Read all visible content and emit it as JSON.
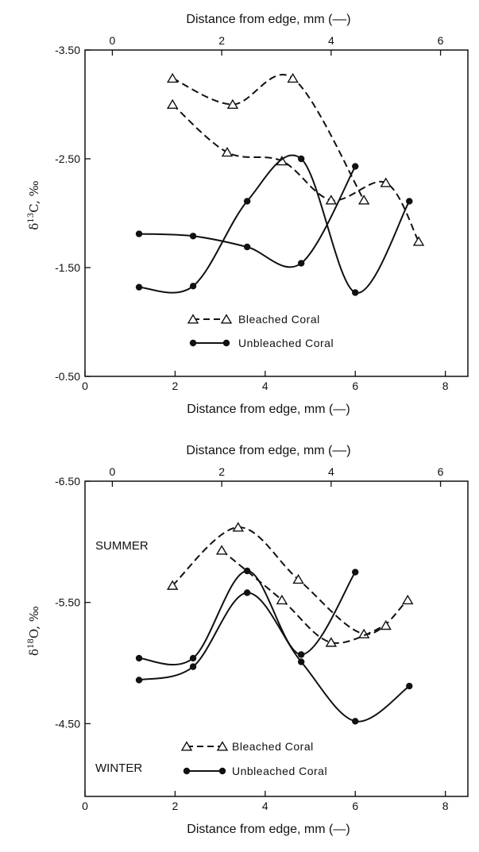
{
  "chart_data": [
    {
      "type": "line",
      "xlabel": "Distance from edge, mm (—)",
      "x2label": "Distance from edge, mm (––)",
      "ylabel_parts": [
        "δ",
        "13",
        "C, ‰"
      ],
      "xlim": [
        0,
        8.5
      ],
      "x2lim": [
        -0.5,
        6.5
      ],
      "ylim": [
        -0.5,
        -3.5
      ],
      "x_ticks": [
        0,
        2,
        4,
        6,
        8
      ],
      "x_tick_labels": [
        "0",
        "2",
        "4",
        "6",
        "8"
      ],
      "x2_ticks": [
        0,
        2,
        4,
        6
      ],
      "x2_tick_labels": [
        "0",
        "2",
        "4",
        "6"
      ],
      "y_ticks": [
        -3.5,
        -2.5,
        -1.5,
        -0.5
      ],
      "y_tick_labels": [
        "-3.50",
        "-2.50",
        "-1.50",
        "-0.50"
      ],
      "legend_placement": "bottom-center",
      "legend": {
        "bleached": "Bleached Coral",
        "unbleached": "Unbleached Coral"
      },
      "series": [
        {
          "name": "Bleached Coral",
          "axis": "top",
          "style": "dashed",
          "marker": "open-triangle",
          "x": [
            1.1,
            2.2,
            3.3,
            4.6
          ],
          "y": [
            -3.24,
            -3.0,
            -3.24,
            -2.12
          ]
        },
        {
          "name": "Bleached Coral",
          "axis": "top",
          "style": "dashed",
          "marker": "open-triangle",
          "x": [
            1.1,
            2.1,
            3.1,
            4.0,
            5.0,
            5.6
          ],
          "y": [
            -3.0,
            -2.56,
            -2.48,
            -2.12,
            -2.28,
            -1.74
          ]
        },
        {
          "name": "Unbleached Coral",
          "axis": "bottom",
          "style": "solid",
          "marker": "filled-circle",
          "x": [
            1.2,
            2.4,
            3.6,
            4.8,
            6.0,
            7.2
          ],
          "y": [
            -1.32,
            -1.33,
            -2.11,
            -2.5,
            -1.27,
            -2.11
          ]
        },
        {
          "name": "Unbleached Coral",
          "axis": "bottom",
          "style": "solid",
          "marker": "filled-circle",
          "x": [
            1.2,
            2.4,
            3.6,
            4.8,
            6.0
          ],
          "y": [
            -1.81,
            -1.79,
            -1.69,
            -1.54,
            -2.43
          ]
        }
      ]
    },
    {
      "type": "line",
      "xlabel": "Distance from edge, mm (—)",
      "x2label": "Distance from edge, mm (––)",
      "ylabel_parts": [
        "δ",
        "18",
        "O, ‰"
      ],
      "xlim": [
        0,
        8.5
      ],
      "x2lim": [
        -0.5,
        6.5
      ],
      "ylim": [
        -3.9,
        -6.5
      ],
      "x_ticks": [
        0,
        2,
        4,
        6,
        8
      ],
      "x_tick_labels": [
        "0",
        "2",
        "4",
        "6",
        "8"
      ],
      "x2_ticks": [
        0,
        2,
        4,
        6
      ],
      "x2_tick_labels": [
        "0",
        "2",
        "4",
        "6"
      ],
      "y_ticks": [
        -6.5,
        -5.5,
        -4.5
      ],
      "y_tick_labels": [
        "-6.50",
        "-5.50",
        "-4.50"
      ],
      "legend_placement": "bottom-center",
      "legend": {
        "bleached": "Bleached Coral",
        "unbleached": "Unbleached Coral"
      },
      "annotations": {
        "summer": "SUMMER",
        "winter": "WINTER"
      },
      "series": [
        {
          "name": "Bleached Coral",
          "axis": "top",
          "style": "dashed",
          "marker": "open-triangle",
          "x": [
            1.1,
            2.3,
            3.4,
            4.6,
            5.4
          ],
          "y": [
            -5.64,
            -6.12,
            -5.69,
            -5.24,
            -5.52
          ]
        },
        {
          "name": "Bleached Coral",
          "axis": "top",
          "style": "dashed",
          "marker": "open-triangle",
          "x": [
            2.0,
            3.1,
            4.0,
            5.0
          ],
          "y": [
            -5.93,
            -5.52,
            -5.17,
            -5.31
          ]
        },
        {
          "name": "Unbleached Coral",
          "axis": "bottom",
          "style": "solid",
          "marker": "filled-circle",
          "x": [
            1.2,
            2.4,
            3.6,
            4.8,
            6.0
          ],
          "y": [
            -5.04,
            -5.04,
            -5.76,
            -5.07,
            -5.75
          ]
        },
        {
          "name": "Unbleached Coral",
          "axis": "bottom",
          "style": "solid",
          "marker": "filled-circle",
          "x": [
            1.2,
            2.4,
            3.6,
            4.8,
            6.0,
            7.2
          ],
          "y": [
            -4.86,
            -4.97,
            -5.58,
            -5.01,
            -4.52,
            -4.81
          ]
        }
      ]
    }
  ]
}
